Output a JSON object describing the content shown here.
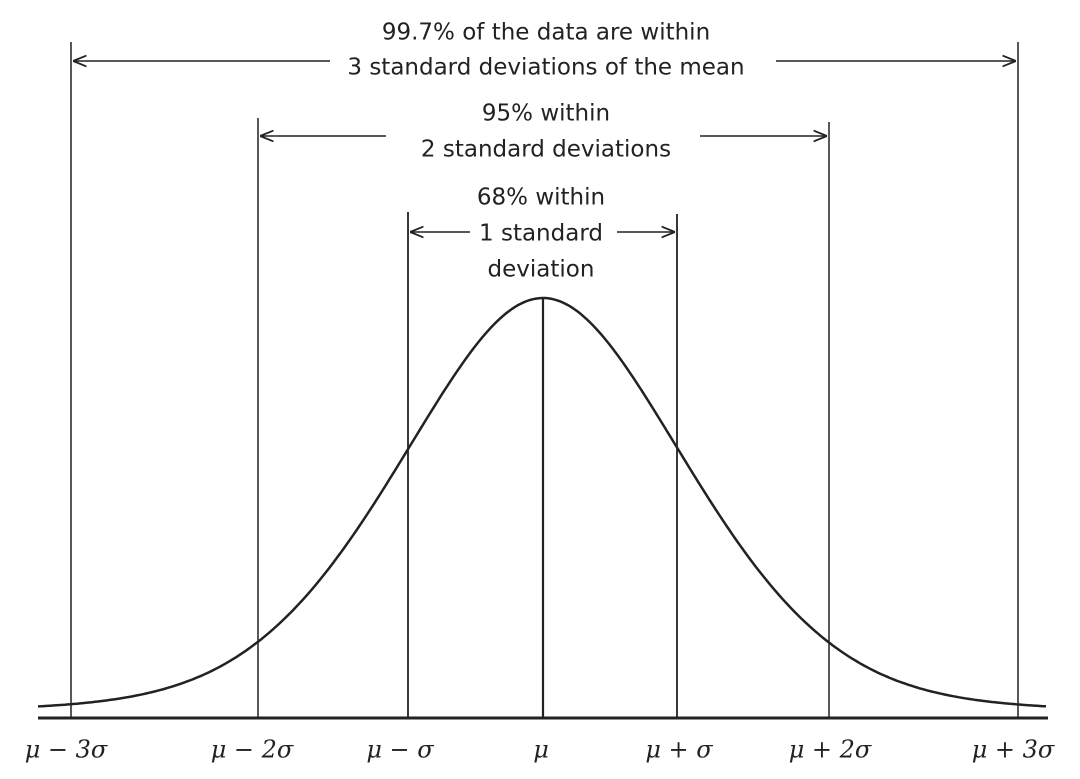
{
  "annotations": {
    "three_sigma": [
      "99.7% of the data are within",
      "3 standard deviations of the mean"
    ],
    "two_sigma": [
      "95% within",
      "2 standard deviations"
    ],
    "one_sigma": [
      "68% within",
      "1 standard",
      "deviation"
    ]
  },
  "axis_labels": [
    "μ − 3σ",
    "μ − 2σ",
    "μ − σ",
    "μ",
    "μ + σ",
    "μ + 2σ",
    "μ + 3σ"
  ]
}
